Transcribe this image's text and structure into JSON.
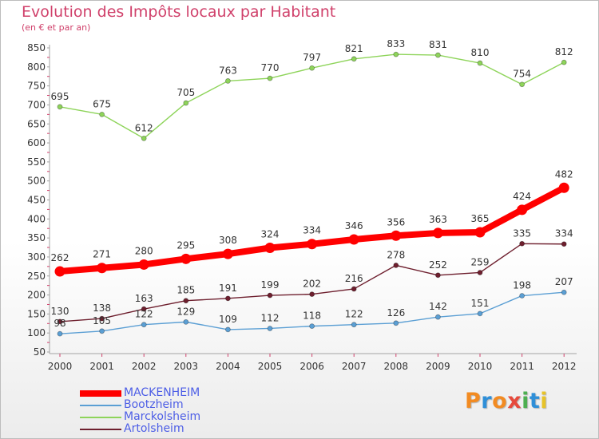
{
  "title": "Evolution des Impôts locaux par Habitant",
  "subtitle": "(en € et par an)",
  "chart_data": {
    "type": "line",
    "title": "Evolution des Impôts locaux par Habitant",
    "subtitle": "(en € et par an)",
    "xlabel": "",
    "ylabel": "",
    "ylim": [
      50,
      850
    ],
    "yticks": [
      50,
      100,
      150,
      200,
      250,
      300,
      350,
      400,
      450,
      500,
      550,
      600,
      650,
      700,
      750,
      800,
      850
    ],
    "x": [
      "2000",
      "2001",
      "2002",
      "2003",
      "2004",
      "2005",
      "2006",
      "2007",
      "2008",
      "2009",
      "2010",
      "2011",
      "2012"
    ],
    "grid": false,
    "legend_position": "bottom-left",
    "series": [
      {
        "name": "MACKENHEIM",
        "color": "#ff0000",
        "legend_text_color": "#4d5ee6",
        "values": [
          262,
          271,
          280,
          295,
          308,
          324,
          334,
          346,
          356,
          363,
          365,
          424,
          482
        ]
      },
      {
        "name": "Bootzheim",
        "color": "#5b9fd4",
        "legend_text_color": "#4d5ee6",
        "values": [
          98,
          105,
          122,
          129,
          109,
          112,
          118,
          122,
          126,
          142,
          151,
          198,
          207
        ]
      },
      {
        "name": "Marckolsheim",
        "color": "#8ed45a",
        "legend_text_color": "#4d5ee6",
        "values": [
          695,
          675,
          612,
          705,
          763,
          770,
          797,
          821,
          833,
          831,
          810,
          754,
          812
        ]
      },
      {
        "name": "Artolsheim",
        "color": "#6e1f2e",
        "legend_text_color": "#4d5ee6",
        "values": [
          130,
          138,
          163,
          185,
          191,
          199,
          202,
          216,
          278,
          252,
          259,
          335,
          334
        ]
      }
    ]
  },
  "logo": {
    "letters": [
      "P",
      "r",
      "o",
      "x",
      "i",
      "t",
      "i"
    ],
    "colors": [
      "#f28b22",
      "#2f8fd8",
      "#f28b22",
      "#e64a3c",
      "#4caf50",
      "#2f8fd8",
      "#e7c329"
    ]
  },
  "colors": {
    "title": "#d0416b",
    "axis": "#a3a3a3",
    "tick_marks": "#d0416b",
    "labels": "#333333"
  }
}
